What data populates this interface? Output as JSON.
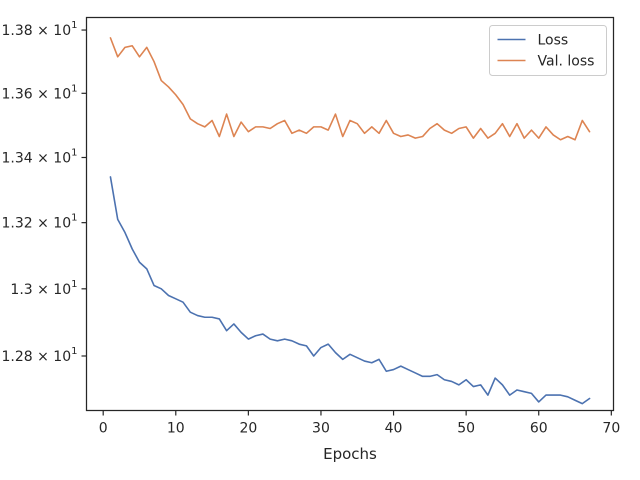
{
  "chart_data": {
    "type": "line",
    "title": "",
    "xlabel": "Epochs",
    "ylabel": "",
    "xlim": [
      -2.3,
      70.3
    ],
    "ylim": [
      12.64,
      13.84
    ],
    "yscale": "log",
    "grid": false,
    "legend_position": "top-right",
    "x_ticks": [
      0,
      10,
      20,
      30,
      40,
      50,
      60,
      70
    ],
    "x_tick_labels": [
      "0",
      "10",
      "20",
      "30",
      "40",
      "50",
      "60",
      "70"
    ],
    "y_ticks": [
      {
        "value": 13.8,
        "mantissa": "1.38",
        "exponent": "1"
      },
      {
        "value": 13.6,
        "mantissa": "1.36",
        "exponent": "1"
      },
      {
        "value": 13.4,
        "mantissa": "1.34",
        "exponent": "1"
      },
      {
        "value": 13.2,
        "mantissa": "1.32",
        "exponent": "1"
      },
      {
        "value": 13.0,
        "mantissa": "1.3",
        "exponent": "1"
      },
      {
        "value": 12.8,
        "mantissa": "1.28",
        "exponent": "1"
      }
    ],
    "x": [
      1,
      2,
      3,
      4,
      5,
      6,
      7,
      8,
      9,
      10,
      11,
      12,
      13,
      14,
      15,
      16,
      17,
      18,
      19,
      20,
      21,
      22,
      23,
      24,
      25,
      26,
      27,
      28,
      29,
      30,
      31,
      32,
      33,
      34,
      35,
      36,
      37,
      38,
      39,
      40,
      41,
      42,
      43,
      44,
      45,
      46,
      47,
      48,
      49,
      50,
      51,
      52,
      53,
      54,
      55,
      56,
      57,
      58,
      59,
      60,
      61,
      62,
      63,
      64,
      65,
      66,
      67
    ],
    "series": [
      {
        "name": "Loss",
        "color": "#4c72b0",
        "values": [
          13.34,
          13.21,
          13.17,
          13.12,
          13.08,
          13.06,
          13.01,
          13.0,
          12.98,
          12.97,
          12.96,
          12.93,
          12.92,
          12.915,
          12.915,
          12.91,
          12.875,
          12.895,
          12.87,
          12.85,
          12.86,
          12.865,
          12.85,
          12.845,
          12.85,
          12.845,
          12.835,
          12.83,
          12.8,
          12.825,
          12.835,
          12.81,
          12.79,
          12.805,
          12.795,
          12.785,
          12.78,
          12.79,
          12.755,
          12.76,
          12.77,
          12.76,
          12.75,
          12.74,
          12.74,
          12.745,
          12.73,
          12.725,
          12.715,
          12.73,
          12.71,
          12.715,
          12.685,
          12.735,
          12.715,
          12.685,
          12.7,
          12.695,
          12.69,
          12.665,
          12.685,
          12.685,
          12.685,
          12.68,
          12.67,
          12.66,
          12.675
        ]
      },
      {
        "name": "Val. loss",
        "color": "#dd8452",
        "values": [
          13.775,
          13.715,
          13.745,
          13.75,
          13.715,
          13.745,
          13.7,
          13.64,
          13.62,
          13.595,
          13.565,
          13.52,
          13.505,
          13.495,
          13.515,
          13.465,
          13.535,
          13.465,
          13.51,
          13.48,
          13.495,
          13.495,
          13.49,
          13.505,
          13.515,
          13.475,
          13.485,
          13.475,
          13.495,
          13.495,
          13.485,
          13.535,
          13.465,
          13.515,
          13.505,
          13.475,
          13.495,
          13.475,
          13.515,
          13.475,
          13.465,
          13.47,
          13.46,
          13.465,
          13.49,
          13.505,
          13.485,
          13.475,
          13.49,
          13.495,
          13.46,
          13.49,
          13.46,
          13.475,
          13.505,
          13.465,
          13.505,
          13.46,
          13.485,
          13.46,
          13.495,
          13.47,
          13.455,
          13.465,
          13.455,
          13.515,
          13.48
        ]
      }
    ]
  }
}
